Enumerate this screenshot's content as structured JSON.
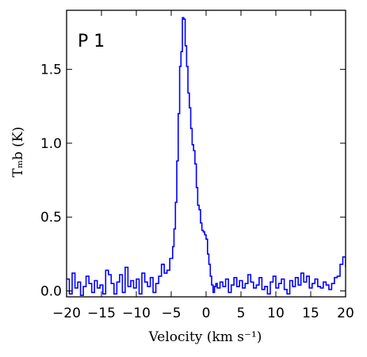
{
  "chart_data": {
    "type": "line",
    "panel_label": "P 1",
    "xlabel": "Velocity (km s⁻¹)",
    "ylabel": "Tₘb (K)",
    "xlim": [
      -20,
      20
    ],
    "ylim": [
      -0.04,
      1.9
    ],
    "x_ticks": [
      -20,
      -15,
      -10,
      -5,
      0,
      5,
      10,
      15,
      20
    ],
    "x_tick_labels": [
      "−20",
      "−15",
      "−10",
      "−5",
      "0",
      "5",
      "10",
      "15",
      "20"
    ],
    "y_ticks": [
      0.0,
      0.5,
      1.0,
      1.5
    ],
    "y_tick_labels": [
      "0.0",
      "0.5",
      "1.0",
      "1.5"
    ],
    "series": [
      {
        "color": "#0000ff",
        "step": true,
        "x": [
          -20.0,
          -19.6,
          -19.2,
          -18.8,
          -18.4,
          -18.0,
          -17.6,
          -17.2,
          -16.8,
          -16.4,
          -16.0,
          -15.6,
          -15.2,
          -14.8,
          -14.4,
          -14.0,
          -13.6,
          -13.2,
          -12.8,
          -12.4,
          -12.0,
          -11.6,
          -11.2,
          -10.8,
          -10.4,
          -10.0,
          -9.6,
          -9.2,
          -8.8,
          -8.4,
          -8.0,
          -7.6,
          -7.2,
          -6.8,
          -6.4,
          -6.0,
          -5.6,
          -5.2,
          -4.8,
          -4.6,
          -4.4,
          -4.2,
          -4.0,
          -3.8,
          -3.6,
          -3.4,
          -3.2,
          -3.0,
          -2.8,
          -2.6,
          -2.4,
          -2.2,
          -2.0,
          -1.8,
          -1.6,
          -1.4,
          -1.2,
          -1.0,
          -0.8,
          -0.6,
          -0.4,
          -0.2,
          0.0,
          0.2,
          0.4,
          0.6,
          0.8,
          1.0,
          1.2,
          1.4,
          1.6,
          2.0,
          2.4,
          2.8,
          3.2,
          3.6,
          4.0,
          4.4,
          4.8,
          5.2,
          5.6,
          6.0,
          6.4,
          6.8,
          7.2,
          7.6,
          8.0,
          8.4,
          8.8,
          9.2,
          9.6,
          10.0,
          10.4,
          10.8,
          11.2,
          11.6,
          12.0,
          12.4,
          12.8,
          13.2,
          13.6,
          14.0,
          14.4,
          14.8,
          15.2,
          15.6,
          16.0,
          16.4,
          16.8,
          17.2,
          17.6,
          18.0,
          18.4,
          18.8,
          19.2,
          19.6,
          20.0
        ],
        "y": [
          0.08,
          -0.02,
          0.12,
          0.02,
          0.06,
          -0.03,
          0.03,
          0.1,
          0.05,
          -0.01,
          0.07,
          0.02,
          0.04,
          -0.02,
          0.14,
          0.11,
          0.05,
          -0.02,
          0.06,
          0.11,
          -0.01,
          0.16,
          0.03,
          0.07,
          0.02,
          0.08,
          -0.02,
          0.12,
          0.06,
          0.03,
          0.09,
          -0.01,
          0.05,
          0.1,
          0.18,
          0.12,
          0.14,
          0.22,
          0.3,
          0.42,
          0.6,
          0.88,
          1.2,
          1.52,
          1.62,
          1.85,
          1.84,
          1.66,
          1.52,
          1.34,
          1.24,
          1.1,
          0.99,
          0.95,
          0.86,
          0.7,
          0.58,
          0.55,
          0.46,
          0.41,
          0.4,
          0.38,
          0.35,
          0.25,
          0.18,
          0.1,
          0.04,
          -0.01,
          0.03,
          0.05,
          0.02,
          0.06,
          0.03,
          0.08,
          -0.01,
          0.04,
          0.09,
          0.03,
          0.07,
          0.02,
          0.05,
          0.11,
          0.06,
          0.02,
          0.04,
          0.09,
          0.01,
          0.03,
          -0.02,
          0.06,
          0.1,
          0.02,
          0.05,
          0.08,
          0.01,
          -0.02,
          0.07,
          0.03,
          0.09,
          0.04,
          0.12,
          0.06,
          0.1,
          0.02,
          0.05,
          0.08,
          0.03,
          0.02,
          0.06,
          0.04,
          0.01,
          0.05,
          0.09,
          0.1,
          0.18,
          0.23,
          0.16
        ]
      }
    ]
  }
}
